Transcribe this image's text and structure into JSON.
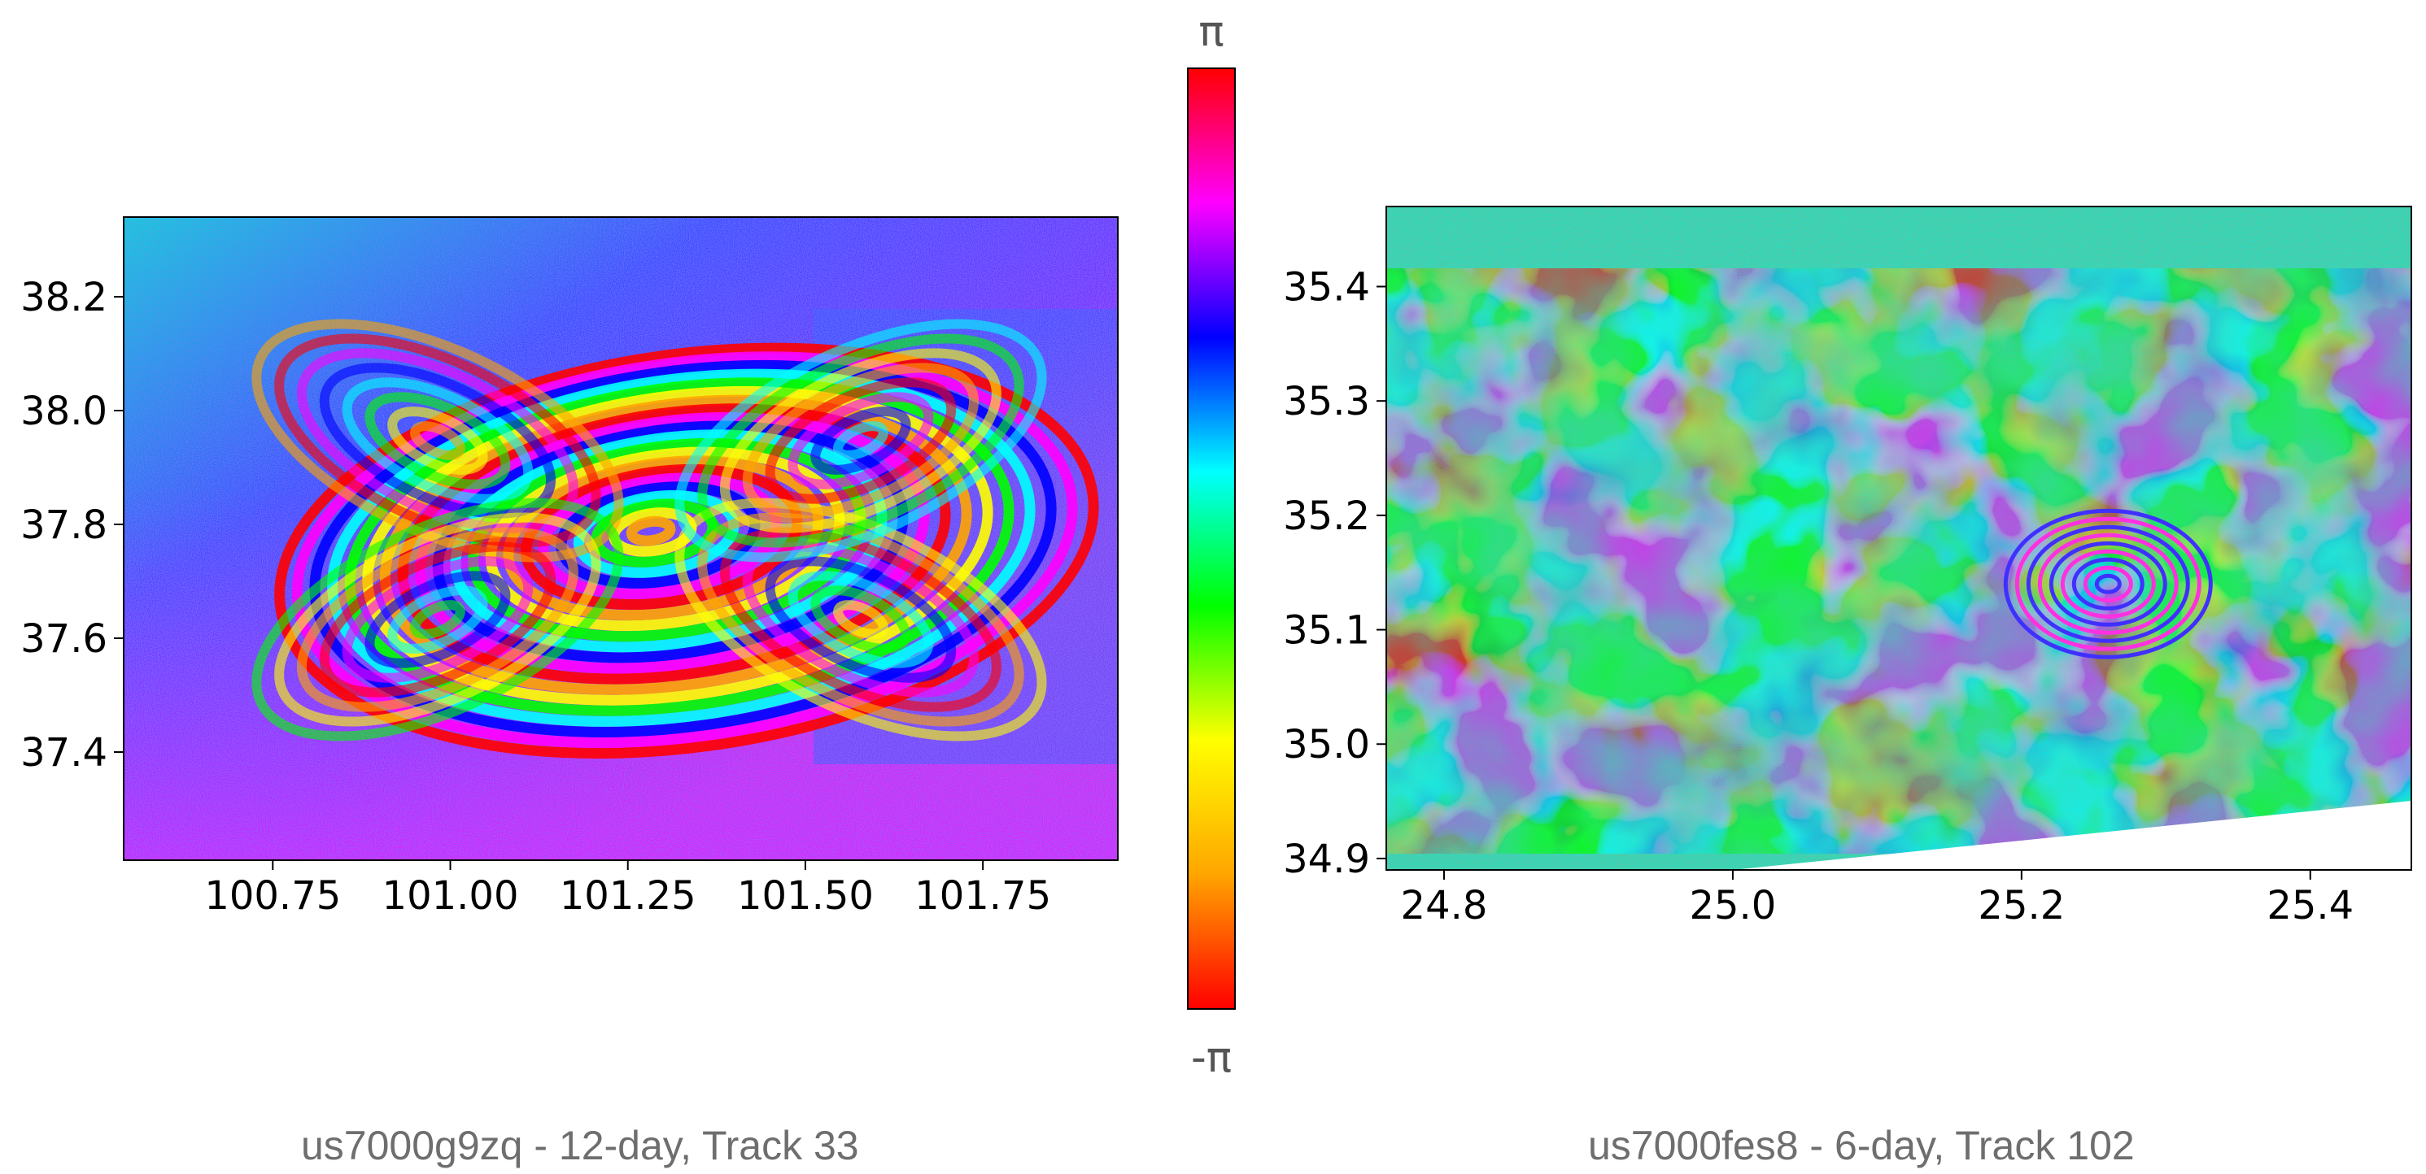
{
  "chart_data": [
    {
      "type": "heatmap",
      "name": "interferogram-left",
      "caption": "us7000g9zq - 12-day, Track 33",
      "xlim": [
        100.54,
        101.94
      ],
      "ylim": [
        37.21,
        38.34
      ],
      "xticks": [
        100.75,
        101.0,
        101.25,
        101.5,
        101.75
      ],
      "xtick_labels": [
        "100.75",
        "101.00",
        "101.25",
        "101.50",
        "101.75"
      ],
      "yticks": [
        37.4,
        37.6,
        37.8,
        38.0,
        38.2
      ],
      "ytick_labels": [
        "37.4",
        "37.6",
        "37.8",
        "38.0",
        "38.2"
      ],
      "fringe_center": [
        101.28,
        37.79
      ],
      "grid": false
    },
    {
      "type": "heatmap",
      "name": "interferogram-right",
      "caption": "us7000fes8 - 6-day, Track 102",
      "xlim": [
        24.76,
        25.47
      ],
      "ylim": [
        34.89,
        35.47
      ],
      "xticks": [
        24.8,
        25.0,
        25.2,
        25.4
      ],
      "xtick_labels": [
        "24.8",
        "25.0",
        "25.2",
        "25.4"
      ],
      "yticks": [
        34.9,
        35.0,
        35.1,
        35.2,
        35.3,
        35.4
      ],
      "ytick_labels": [
        "34.9",
        "35.0",
        "35.1",
        "35.2",
        "35.3",
        "35.4"
      ],
      "fringe_center": [
        25.26,
        35.14
      ],
      "grid": false
    }
  ],
  "colorbar": {
    "top_label": "π",
    "bottom_label": "-π",
    "colors": [
      "#ff0000",
      "#ffa500",
      "#ffff00",
      "#00ff00",
      "#00ffff",
      "#0000ff",
      "#ff00ff",
      "#ff0000"
    ]
  }
}
